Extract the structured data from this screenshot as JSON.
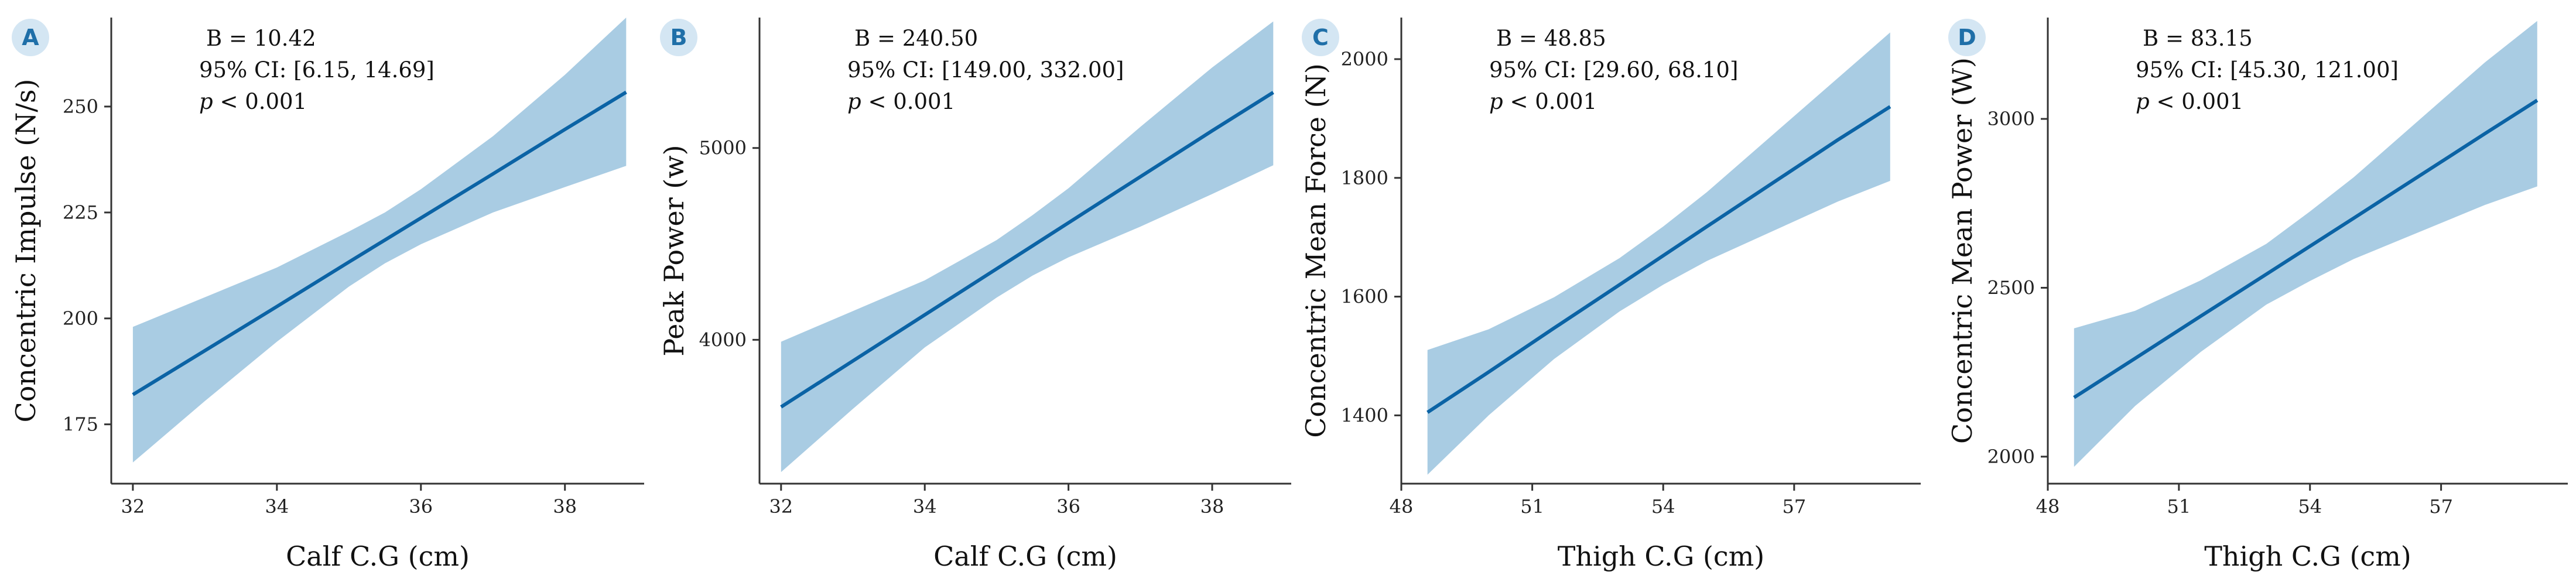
{
  "colors": {
    "line": "#0b63a5",
    "band": "#a9cce3",
    "axis": "#333333",
    "badge_bg": "#d4e6f3",
    "badge_text": "#1f6fa8"
  },
  "chart_data": [
    {
      "type": "line",
      "panel_label": "A",
      "xlabel": "Calf C.G (cm)",
      "ylabel": "Concentric Impulse (N/s)",
      "xlim": [
        31.7,
        39.1
      ],
      "ylim": [
        161,
        271
      ],
      "xticks": [
        32,
        34,
        36,
        38
      ],
      "yticks": [
        175,
        200,
        225,
        250
      ],
      "x": [
        32.0,
        33.0,
        34.0,
        35.0,
        35.5,
        36.0,
        37.0,
        38.0,
        38.85
      ],
      "y": [
        182.0,
        192.4,
        202.8,
        213.3,
        218.5,
        223.7,
        234.1,
        244.6,
        253.4
      ],
      "lower": [
        166.0,
        180.5,
        194.5,
        207.5,
        213.0,
        217.5,
        225.0,
        231.0,
        236.0
      ],
      "upper": [
        198.0,
        205.0,
        212.0,
        220.5,
        225.0,
        230.5,
        243.0,
        257.5,
        271.0
      ],
      "annotation": {
        "b": "B = 10.42",
        "ci": "95% CI: [6.15, 14.69]",
        "p_symbol": "p",
        "p_rest": " < 0.001"
      }
    },
    {
      "type": "line",
      "panel_label": "B",
      "xlabel": "Calf C.G (cm)",
      "ylabel": "Peak Power (w)",
      "xlim": [
        31.7,
        39.1
      ],
      "ylim": [
        3250,
        5680
      ],
      "xticks": [
        32,
        34,
        36,
        38
      ],
      "yticks": [
        4000,
        5000
      ],
      "x": [
        32.0,
        33.0,
        34.0,
        35.0,
        35.5,
        36.0,
        37.0,
        38.0,
        38.85
      ],
      "y": [
        3650,
        3890,
        4130,
        4370,
        4490,
        4610,
        4850,
        5090,
        5290
      ],
      "lower": [
        3310,
        3640,
        3960,
        4220,
        4335,
        4430,
        4590,
        4760,
        4910
      ],
      "upper": [
        3990,
        4150,
        4310,
        4520,
        4650,
        4790,
        5110,
        5420,
        5660
      ],
      "annotation": {
        "b": "B = 240.50",
        "ci": "95% CI: [149.00, 332.00]",
        "p_symbol": "p",
        "p_rest": " < 0.001"
      }
    },
    {
      "type": "line",
      "panel_label": "C",
      "xlabel": "Thigh C.G (cm)",
      "ylabel": "Concentric Mean Force (N)",
      "xlim": [
        48.0,
        59.9
      ],
      "ylim": [
        1285,
        2070
      ],
      "xticks": [
        48,
        51,
        54,
        57
      ],
      "yticks": [
        1400,
        1600,
        1800,
        2000
      ],
      "x": [
        48.6,
        50.0,
        51.5,
        53.0,
        54.0,
        55.0,
        56.5,
        58.0,
        59.2
      ],
      "y": [
        1405,
        1473,
        1547,
        1620,
        1669,
        1718,
        1791,
        1864,
        1920
      ],
      "lower": [
        1300,
        1400,
        1495,
        1575,
        1620,
        1660,
        1710,
        1760,
        1795
      ],
      "upper": [
        1510,
        1545,
        1599,
        1665,
        1718,
        1776,
        1872,
        1968,
        2045
      ],
      "annotation": {
        "b": "B = 48.85",
        "ci": "95% CI: [29.60, 68.10]",
        "p_symbol": "p",
        "p_rest": " < 0.001"
      }
    },
    {
      "type": "line",
      "panel_label": "D",
      "xlabel": "Thigh C.G (cm)",
      "ylabel": "Concentric Mean Power (W)",
      "xlim": [
        48.0,
        59.9
      ],
      "ylim": [
        1920,
        3300
      ],
      "xticks": [
        48,
        51,
        54,
        57
      ],
      "yticks": [
        2000,
        2500,
        3000
      ],
      "x": [
        48.6,
        50.0,
        51.5,
        53.0,
        54.0,
        55.0,
        56.5,
        58.0,
        59.2
      ],
      "y": [
        2175,
        2291,
        2416,
        2540,
        2623,
        2706,
        2831,
        2956,
        3055
      ],
      "lower": [
        1970,
        2150,
        2310,
        2450,
        2520,
        2585,
        2665,
        2745,
        2800
      ],
      "upper": [
        2380,
        2432,
        2522,
        2630,
        2726,
        2827,
        2997,
        3167,
        3290
      ],
      "annotation": {
        "b": "B = 83.15",
        "ci": "95% CI: [45.30, 121.00]",
        "p_symbol": "p",
        "p_rest": " < 0.001"
      }
    }
  ]
}
